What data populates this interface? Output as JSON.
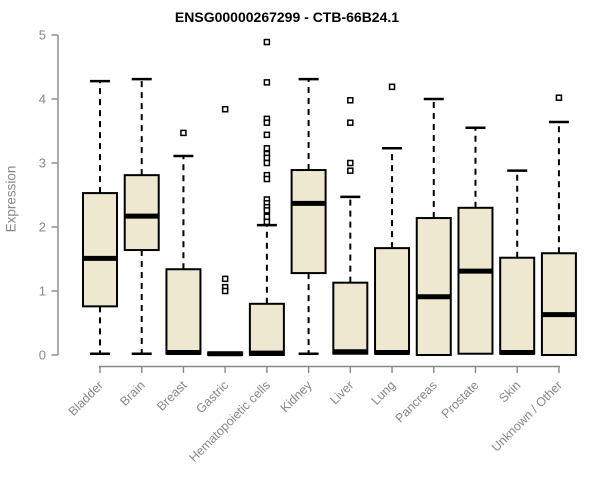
{
  "chart_data": {
    "type": "box",
    "title": "ENSG00000267299 - CTB-66B24.1",
    "xlabel": "",
    "ylabel": "Expression",
    "ylim": [
      0,
      5
    ],
    "yticks": [
      0,
      1,
      2,
      3,
      4,
      5
    ],
    "grid": false,
    "legend_position": "none",
    "box_fill": "#ede8cf",
    "box_stroke": "#000000",
    "axis_color": "#888888",
    "tick_label_color": "#878787",
    "title_color": "#000000",
    "categories": [
      "Bladder",
      "Brain",
      "Breast",
      "Gastric",
      "Hematopoietic cells",
      "Kidney",
      "Liver",
      "Lung",
      "Pancreas",
      "Prostate",
      "Skin",
      "Unknown / Other"
    ],
    "series": [
      {
        "name": "Bladder",
        "lower_whisker": 0.02,
        "q1": 0.76,
        "median": 1.51,
        "q3": 2.53,
        "upper_whisker": 4.28,
        "outliers": []
      },
      {
        "name": "Brain",
        "lower_whisker": 0.02,
        "q1": 1.64,
        "median": 2.17,
        "q3": 2.81,
        "upper_whisker": 4.31,
        "outliers": []
      },
      {
        "name": "Breast",
        "lower_whisker": 0.02,
        "q1": 0.02,
        "median": 0.04,
        "q3": 1.34,
        "upper_whisker": 3.11,
        "outliers": [
          3.47
        ]
      },
      {
        "name": "Gastric",
        "lower_whisker": 0.0,
        "q1": 0.0,
        "median": 0.02,
        "q3": 0.04,
        "upper_whisker": 0.04,
        "outliers": [
          3.84,
          1.19,
          1.06,
          1.0
        ]
      },
      {
        "name": "Hematopoietic cells",
        "lower_whisker": 0.0,
        "q1": 0.0,
        "median": 0.03,
        "q3": 0.8,
        "upper_whisker": 2.03,
        "outliers": [
          4.89,
          4.26,
          3.69,
          3.63,
          3.44,
          3.23,
          3.14,
          3.08,
          3.0,
          2.81,
          2.75,
          2.43,
          2.37,
          2.31,
          2.26,
          2.16,
          2.08
        ]
      },
      {
        "name": "Kidney",
        "lower_whisker": 0.02,
        "q1": 1.28,
        "median": 2.37,
        "q3": 2.89,
        "upper_whisker": 4.31,
        "outliers": []
      },
      {
        "name": "Liver",
        "lower_whisker": 0.02,
        "q1": 0.02,
        "median": 0.05,
        "q3": 1.13,
        "upper_whisker": 2.47,
        "outliers": [
          3.98,
          3.63,
          3.0,
          2.88
        ]
      },
      {
        "name": "Lung",
        "lower_whisker": 0.02,
        "q1": 0.02,
        "median": 0.04,
        "q3": 1.67,
        "upper_whisker": 3.23,
        "outliers": [
          4.19
        ]
      },
      {
        "name": "Pancreas",
        "lower_whisker": 0.0,
        "q1": 0.0,
        "median": 0.91,
        "q3": 2.14,
        "upper_whisker": 4.0,
        "outliers": []
      },
      {
        "name": "Prostate",
        "lower_whisker": 0.02,
        "q1": 0.02,
        "median": 1.31,
        "q3": 2.3,
        "upper_whisker": 3.55,
        "outliers": []
      },
      {
        "name": "Skin",
        "lower_whisker": 0.02,
        "q1": 0.02,
        "median": 0.04,
        "q3": 1.52,
        "upper_whisker": 2.88,
        "outliers": []
      },
      {
        "name": "Unknown / Other",
        "lower_whisker": 0.0,
        "q1": 0.0,
        "median": 0.63,
        "q3": 1.59,
        "upper_whisker": 3.64,
        "outliers": [
          4.02
        ]
      }
    ]
  }
}
